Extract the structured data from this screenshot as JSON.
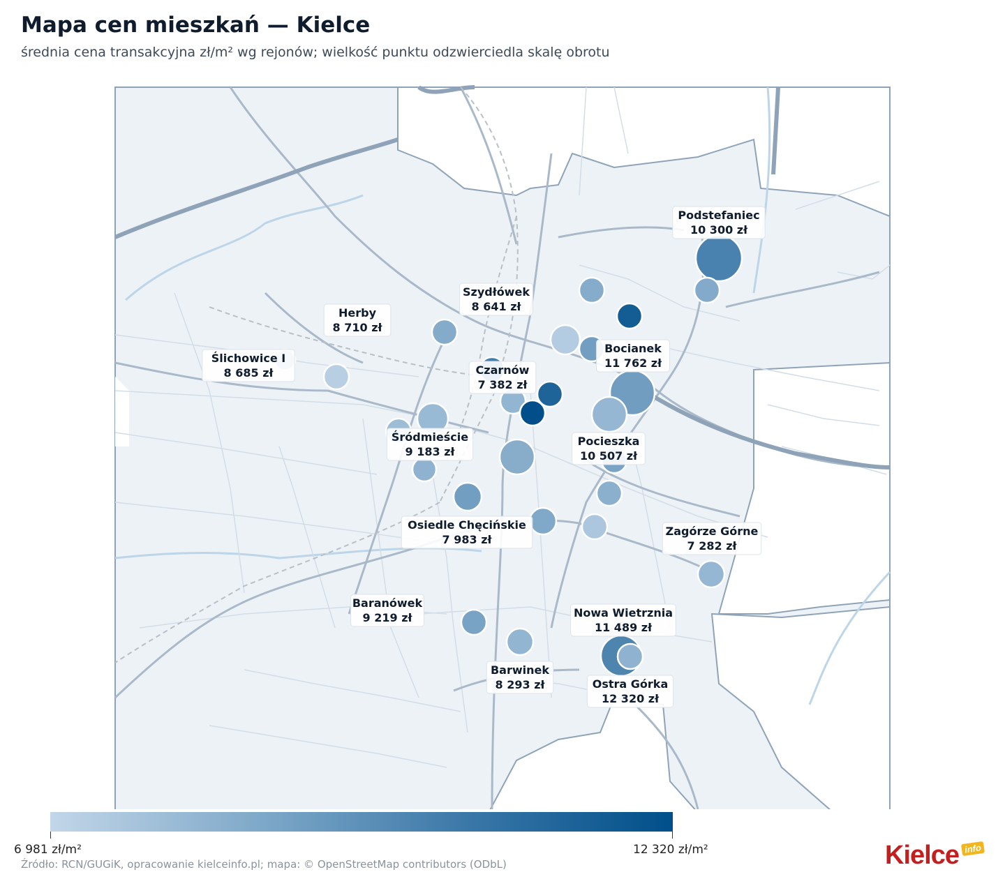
{
  "title": "Mapa cen mieszkań — Kielce",
  "subtitle": "średnia cena transakcyjna zł/m² wg rejonów; wielkość punktu odzwierciedla skalę obrotu",
  "legend": {
    "min_label": "6 981 zł/m²",
    "max_label": "12 320 zł/m²",
    "min_value": 6981,
    "max_value": 12320,
    "colors": [
      "#c2d6e8",
      "#004f8a"
    ]
  },
  "labels": [
    {
      "name": "Podstefaniec",
      "price": "10 300 zł"
    },
    {
      "name": "Szydłówek",
      "price": "8 641 zł"
    },
    {
      "name": "Herby",
      "price": "8 710 zł"
    },
    {
      "name": "Bocianek",
      "price": "11 762 zł"
    },
    {
      "name": "Ślichowice I",
      "price": "8 685 zł"
    },
    {
      "name": "Czarnów",
      "price": "7 382 zł"
    },
    {
      "name": "Śródmieście",
      "price": "9 183 zł"
    },
    {
      "name": "Pocieszka",
      "price": "10 507 zł"
    },
    {
      "name": "Osiedle Chęcińskie",
      "price": "7 983 zł"
    },
    {
      "name": "Zagórze Górne",
      "price": "7 282 zł"
    },
    {
      "name": "Baranówek",
      "price": "9 219 zł"
    },
    {
      "name": "Nowa Wietrznia",
      "price": "11 489 zł"
    },
    {
      "name": "Barwinek",
      "price": "8 293 zł"
    },
    {
      "name": "Ostra Górka",
      "price": "12 320 zł"
    }
  ],
  "points_price": [
    10300,
    8641,
    8710,
    11762,
    8685,
    7382,
    9183,
    10507,
    7983,
    7282,
    9219,
    11489,
    8293,
    12320,
    8200,
    8100,
    8000,
    8600,
    9000,
    8400,
    8500,
    9200,
    8800,
    7600,
    8200,
    9000,
    8300,
    10200,
    8400,
    7800
  ],
  "source": "Źródło: RCN/GUGiK, opracowanie kielceinfo.pl; mapa: © OpenStreetMap contributors (ODbL)",
  "logo": {
    "text": "Kielce",
    "badge": "info"
  }
}
